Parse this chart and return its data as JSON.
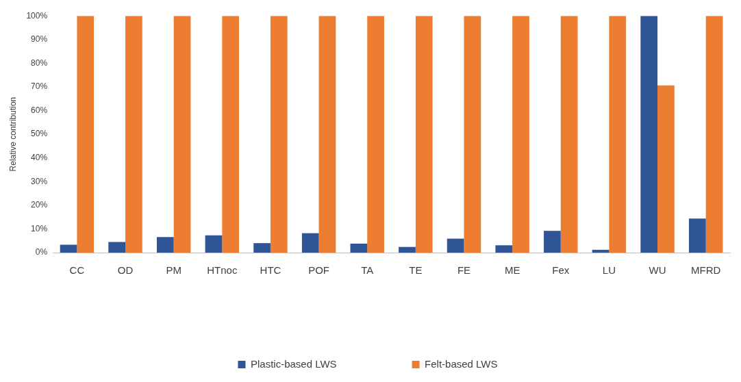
{
  "chart_data": {
    "type": "bar",
    "ylabel": "Relative contribution",
    "categories": [
      "CC",
      "OD",
      "PM",
      "HTnoc",
      "HTC",
      "POF",
      "TA",
      "TE",
      "FE",
      "ME",
      "Fex",
      "LU",
      "WU",
      "MFRD"
    ],
    "series": [
      {
        "name": "Plastic-based LWS",
        "color": "#2f5597",
        "values": [
          3.3,
          4.5,
          6.6,
          7.3,
          4.0,
          8.2,
          3.8,
          2.4,
          5.9,
          3.1,
          9.2,
          1.2,
          100,
          14.4
        ]
      },
      {
        "name": "Felt-based LWS",
        "color": "#ed7d31",
        "values": [
          100,
          100,
          100,
          100,
          100,
          100,
          100,
          100,
          100,
          100,
          100,
          100,
          70.6,
          100
        ]
      }
    ],
    "ylim": [
      0,
      100
    ],
    "yticks": [
      {
        "value": 0,
        "label": "0%"
      },
      {
        "value": 10,
        "label": "10%"
      },
      {
        "value": 20,
        "label": "20%"
      },
      {
        "value": 30,
        "label": "30%"
      },
      {
        "value": 40,
        "label": "40%"
      },
      {
        "value": 50,
        "label": "50%"
      },
      {
        "value": 60,
        "label": "60%"
      },
      {
        "value": 70,
        "label": "70%"
      },
      {
        "value": 80,
        "label": "80%"
      },
      {
        "value": 90,
        "label": "90%"
      },
      {
        "value": 100,
        "label": "100%"
      }
    ],
    "grid": false,
    "legend": "bottom"
  }
}
